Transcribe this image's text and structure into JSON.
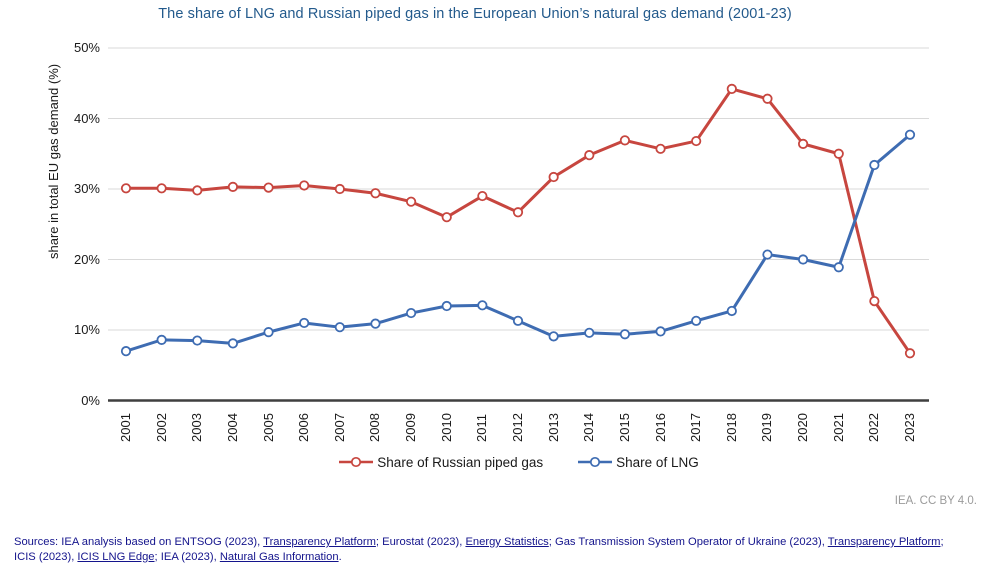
{
  "chart_data": {
    "type": "line",
    "title": "The share of LNG and Russian piped gas in the European Union’s natural gas demand (2001-23)",
    "ylabel": "share in total EU gas demand (%)",
    "ylim": [
      0,
      50
    ],
    "yticks": [
      0,
      10,
      20,
      30,
      40,
      50
    ],
    "ytick_suffix": "%",
    "grid": true,
    "legend_position": "bottom",
    "categories": [
      "2001",
      "2002",
      "2003",
      "2004",
      "2005",
      "2006",
      "2007",
      "2008",
      "2009",
      "2010",
      "2011",
      "2012",
      "2013",
      "2014",
      "2015",
      "2016",
      "2017",
      "2018",
      "2019",
      "2020",
      "2021",
      "2022",
      "2023"
    ],
    "series": [
      {
        "name": "Share of Russian piped gas",
        "color": "#c7463f",
        "values": [
          30.1,
          30.1,
          29.8,
          30.3,
          30.2,
          30.5,
          30.0,
          29.4,
          28.2,
          26.0,
          29.0,
          26.7,
          31.7,
          34.8,
          36.9,
          35.7,
          36.8,
          44.2,
          42.8,
          36.4,
          35.0,
          14.1,
          6.7
        ]
      },
      {
        "name": "Share of LNG",
        "color": "#3e6cb2",
        "values": [
          7.0,
          8.6,
          8.5,
          8.1,
          9.7,
          11.0,
          10.4,
          10.9,
          12.4,
          13.4,
          13.5,
          11.3,
          9.1,
          9.6,
          9.4,
          9.8,
          11.3,
          12.7,
          20.7,
          20.0,
          18.9,
          33.4,
          37.7
        ]
      }
    ]
  },
  "colors": {
    "gridline": "#d9d9d9",
    "baseline": "#3f3f3f",
    "title": "#235a8c",
    "sources_text": "#14148c",
    "attribution_gray": "#9b9b9b"
  },
  "footer": {
    "attribution": "IEA. CC BY 4.0."
  },
  "sources": {
    "segments": [
      {
        "text": "Sources: IEA analysis based on ENTSOG (2023), ",
        "link": false
      },
      {
        "text": "Transparency Platform",
        "link": true
      },
      {
        "text": "; Eurostat (2023), ",
        "link": false
      },
      {
        "text": "Energy Statistics",
        "link": true
      },
      {
        "text": "; Gas Transmission System Operator of Ukraine (2023), ",
        "link": false
      },
      {
        "text": "Transparency Platform",
        "link": true
      },
      {
        "text": "; ICIS (2023), ",
        "link": false
      },
      {
        "text": "ICIS LNG Edge",
        "link": true
      },
      {
        "text": "; IEA (2023), ",
        "link": false
      },
      {
        "text": "Natural Gas Information",
        "link": true
      },
      {
        "text": ".",
        "link": false
      }
    ]
  }
}
